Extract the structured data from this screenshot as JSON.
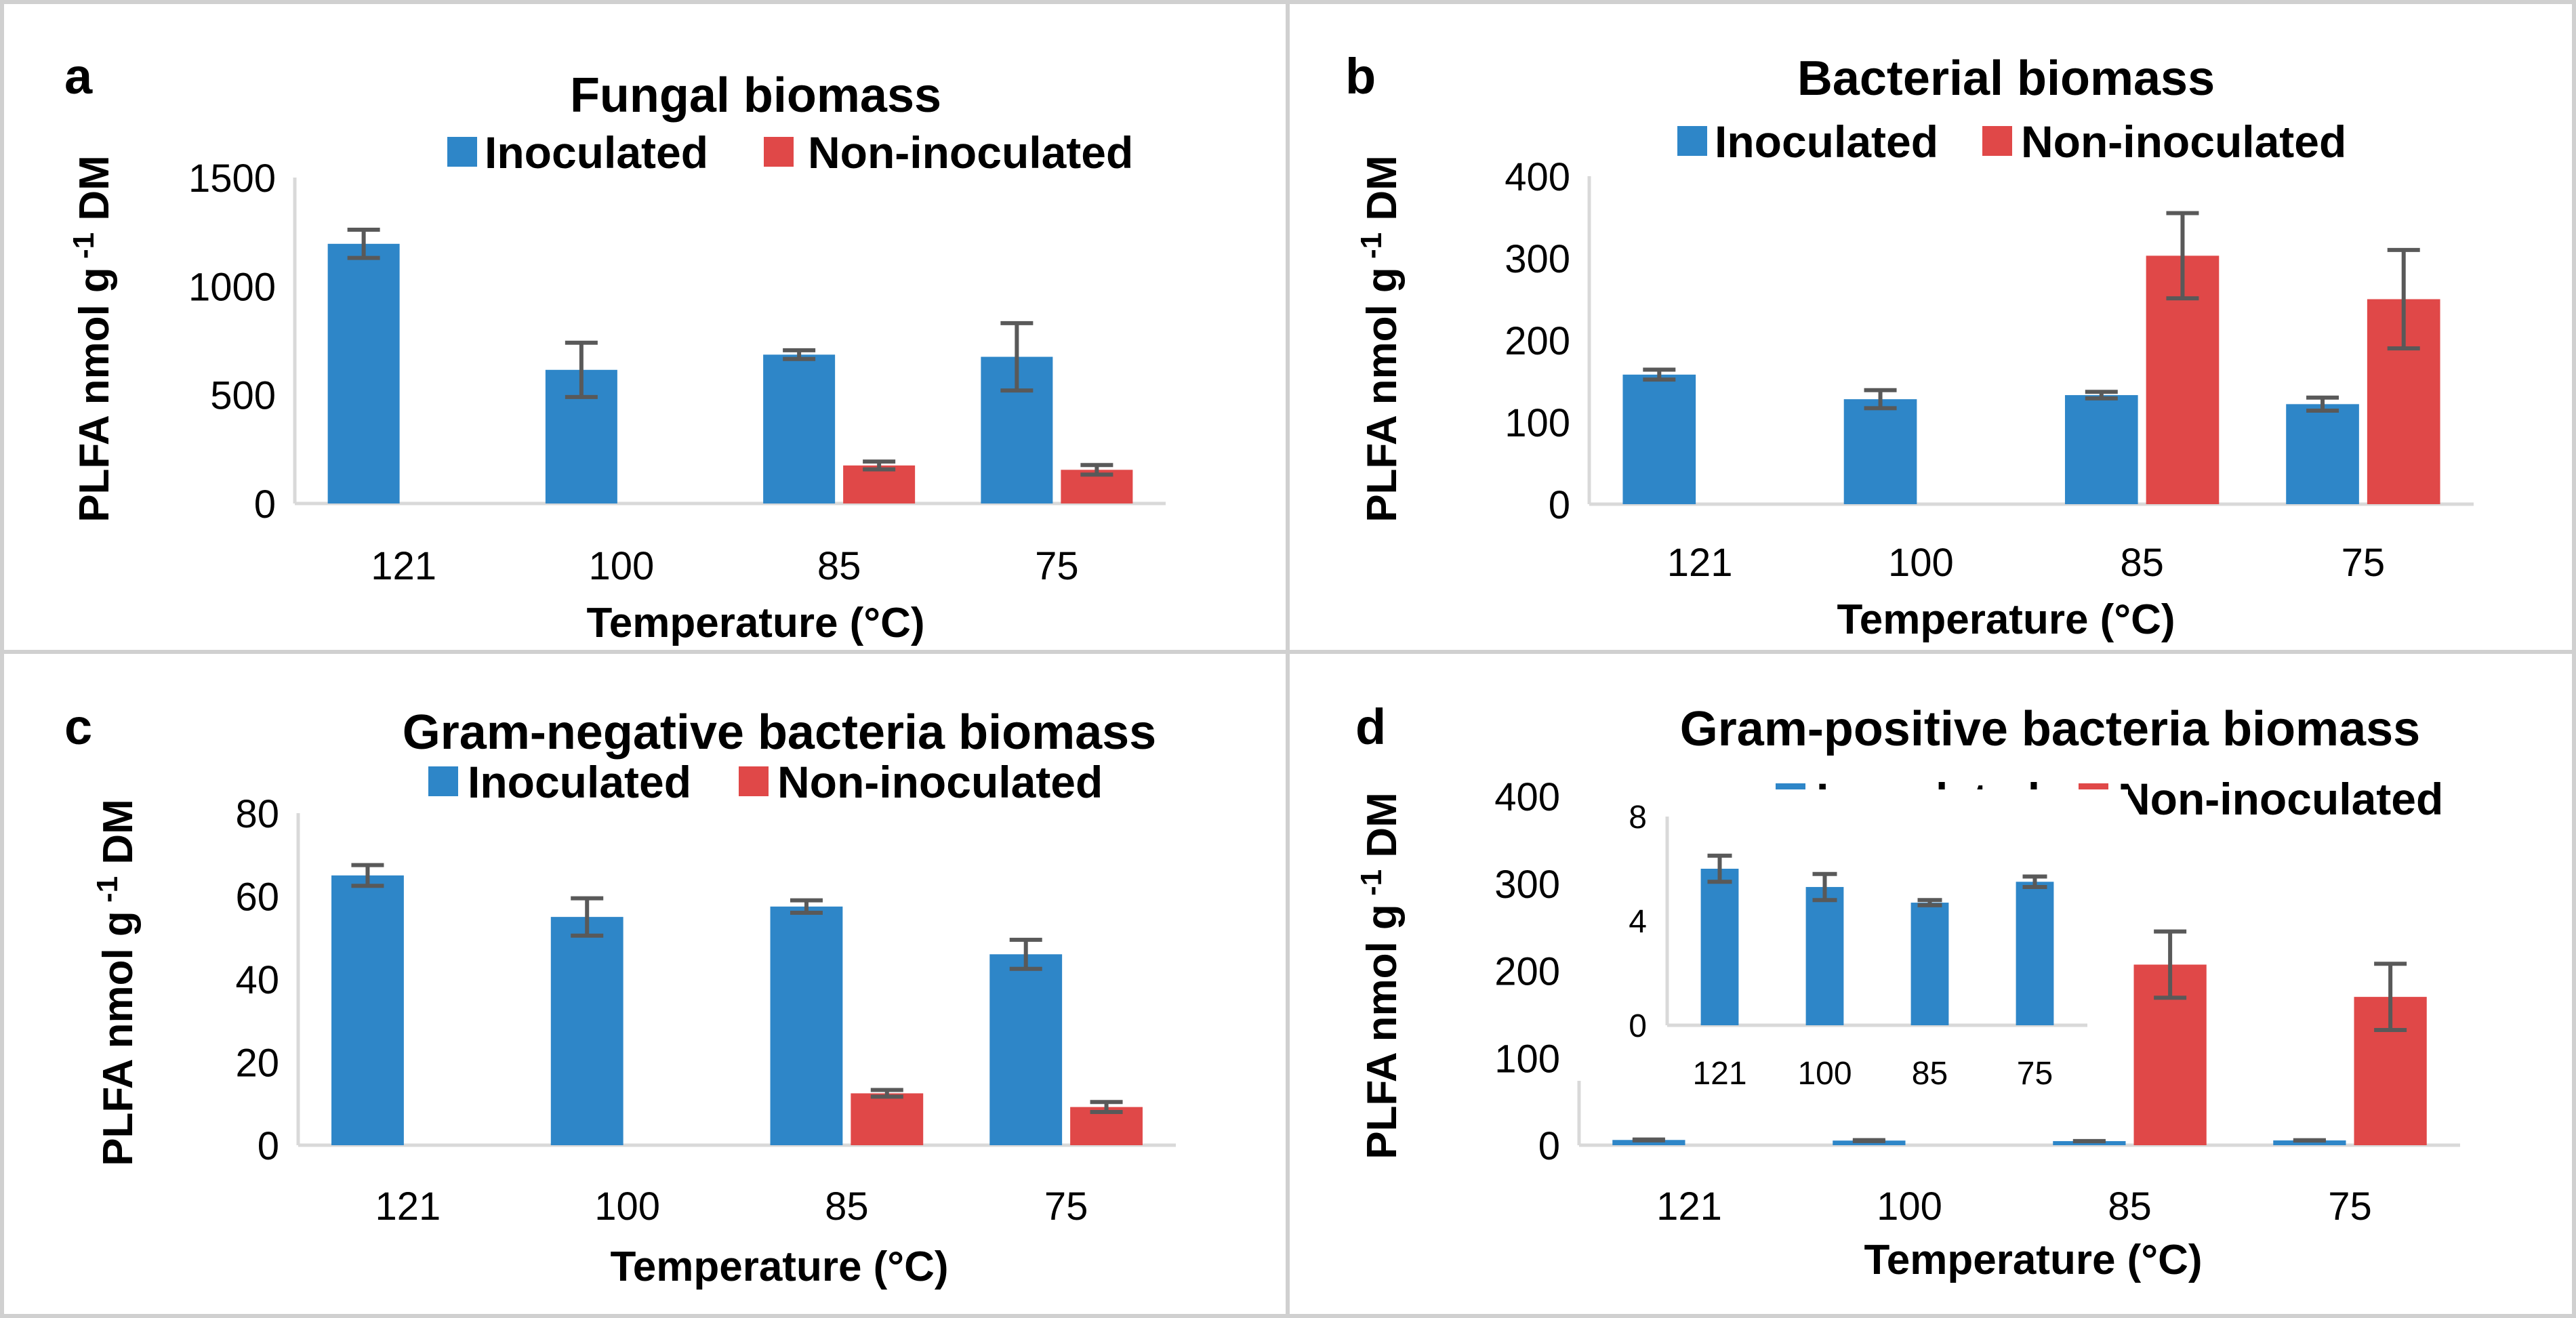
{
  "colors": {
    "inoculated": "#2e86c8",
    "non_inoculated": "#e04848",
    "error_bar": "#595959"
  },
  "chart_data": [
    {
      "type": "bar",
      "panel_label": "a",
      "title": "Fungal biomass",
      "xlabel": "Temperature (°C)",
      "ylabel": "PLFA nmol g",
      "ylabel_sup": "-1",
      "ylabel_tail": " DM",
      "categories": [
        "121",
        "100",
        "85",
        "75"
      ],
      "ylim": [
        0,
        1500
      ],
      "yticks": [
        0,
        500,
        1000,
        1500
      ],
      "legend_position": "top",
      "series": [
        {
          "name": "Inoculated",
          "values": [
            1195,
            615,
            685,
            675
          ],
          "errors": [
            65,
            125,
            20,
            155
          ]
        },
        {
          "name": "Non-inoculated",
          "values": [
            null,
            null,
            175,
            155
          ],
          "errors": [
            null,
            null,
            18,
            22
          ]
        }
      ]
    },
    {
      "type": "bar",
      "panel_label": "b",
      "title": "Bacterial biomass",
      "xlabel": "Temperature (°C)",
      "ylabel": "PLFA nmol g",
      "ylabel_sup": "-1",
      "ylabel_tail": " DM",
      "categories": [
        "121",
        "100",
        "85",
        "75"
      ],
      "ylim": [
        0,
        400
      ],
      "yticks": [
        0,
        100,
        200,
        300,
        400
      ],
      "legend_position": "top",
      "series": [
        {
          "name": "Inoculated",
          "values": [
            158,
            128,
            133,
            122
          ],
          "errors": [
            6,
            11,
            4,
            8
          ]
        },
        {
          "name": "Non-inoculated",
          "values": [
            null,
            null,
            303,
            250
          ],
          "errors": [
            null,
            null,
            52,
            60
          ]
        }
      ]
    },
    {
      "type": "bar",
      "panel_label": "c",
      "title": "Gram-negative bacteria biomass",
      "xlabel": "Temperature (°C)",
      "ylabel": "PLFA nmol g",
      "ylabel_sup": "-1",
      "ylabel_tail": " DM",
      "categories": [
        "121",
        "100",
        "85",
        "75"
      ],
      "ylim": [
        0,
        80
      ],
      "yticks": [
        0,
        20,
        40,
        60,
        80
      ],
      "legend_position": "top",
      "series": [
        {
          "name": "Inoculated",
          "values": [
            65,
            55,
            57.5,
            46
          ],
          "errors": [
            2.5,
            4.5,
            1.5,
            3.5
          ]
        },
        {
          "name": "Non-inoculated",
          "values": [
            null,
            null,
            12.5,
            9.2
          ],
          "errors": [
            null,
            null,
            0.8,
            1.2
          ]
        }
      ]
    },
    {
      "type": "bar",
      "panel_label": "d",
      "title": "Gram-positive bacteria biomass",
      "xlabel": "Temperature (°C)",
      "ylabel": "PLFA nmol g",
      "ylabel_sup": "-1",
      "ylabel_tail": " DM",
      "categories": [
        "121",
        "100",
        "85",
        "75"
      ],
      "ylim": [
        0,
        400
      ],
      "yticks": [
        0,
        100,
        200,
        300,
        400
      ],
      "legend_position": "top",
      "series": [
        {
          "name": "Inoculated",
          "values": [
            6,
            5.3,
            4.7,
            5.5
          ],
          "errors": [
            0.5,
            0.5,
            0.1,
            0.2
          ]
        },
        {
          "name": "Non-inoculated",
          "values": [
            null,
            null,
            207,
            170
          ],
          "errors": [
            null,
            null,
            38,
            38
          ]
        }
      ],
      "inset": {
        "categories": [
          "121",
          "100",
          "85",
          "75"
        ],
        "ylim": [
          0,
          8
        ],
        "yticks": [
          0,
          4,
          8
        ],
        "series": [
          {
            "name": "Inoculated",
            "values": [
              6,
              5.3,
              4.7,
              5.5
            ],
            "errors": [
              0.5,
              0.5,
              0.1,
              0.2
            ]
          }
        ]
      }
    }
  ]
}
